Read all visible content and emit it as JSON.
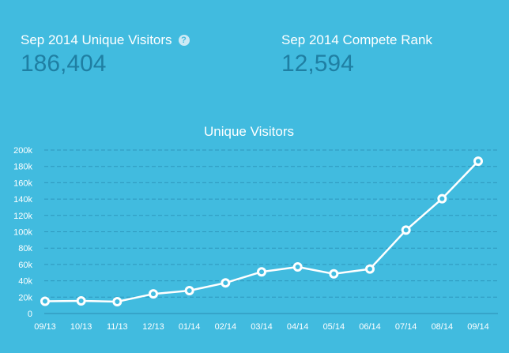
{
  "stats": {
    "visitors_label": "Sep 2014 Unique Visitors",
    "visitors_value": "186,404",
    "rank_label": "Sep 2014 Compete Rank",
    "rank_value": "12,594",
    "help_glyph": "?"
  },
  "colors": {
    "background": "#41bbdf",
    "line": "#ffffff",
    "value_text": "#1f7fa3",
    "grid": "#2e97bd"
  },
  "chart_data": {
    "type": "line",
    "title": "Unique Visitors",
    "xlabel": "",
    "ylabel": "",
    "categories": [
      "09/13",
      "10/13",
      "11/13",
      "12/13",
      "01/14",
      "02/14",
      "03/14",
      "04/14",
      "05/14",
      "06/14",
      "07/14",
      "08/14",
      "09/14"
    ],
    "values": [
      15000,
      15500,
      14500,
      24000,
      28000,
      37500,
      51000,
      57000,
      48500,
      54500,
      102000,
      140500,
      186404
    ],
    "ylim": [
      0,
      200000
    ],
    "yticks": [
      0,
      20000,
      40000,
      60000,
      80000,
      100000,
      120000,
      140000,
      160000,
      180000,
      200000
    ],
    "ytick_labels": [
      "0",
      "20k",
      "40k",
      "60k",
      "80k",
      "100k",
      "120k",
      "140k",
      "160k",
      "180k",
      "200k"
    ],
    "grid": true,
    "legend": "none"
  }
}
